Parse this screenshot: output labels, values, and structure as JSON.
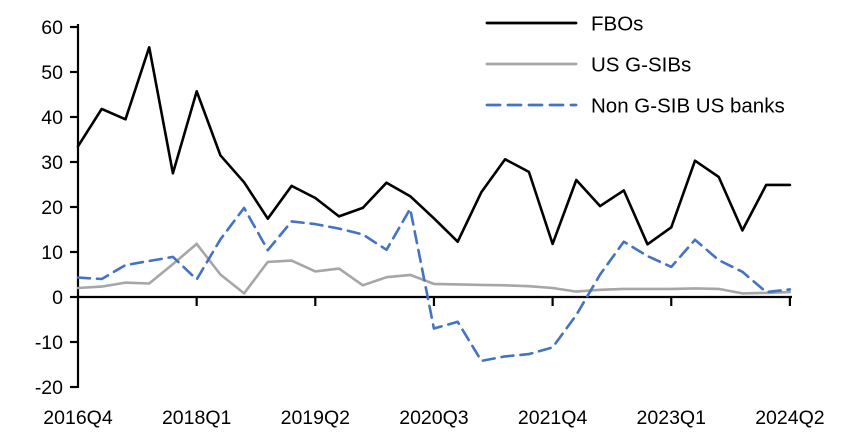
{
  "page": {
    "background_color": "#ffffff",
    "text_color": "#000000"
  },
  "chart_data": {
    "type": "line",
    "title": "",
    "xlabel": "",
    "ylabel": "",
    "grid": false,
    "legend_position": "top-right",
    "axis_color": "#000000",
    "ylim": [
      -20,
      60
    ],
    "ytick_step": 10,
    "categories": [
      "2016Q4",
      "2017Q1",
      "2017Q2",
      "2017Q3",
      "2017Q4",
      "2018Q1",
      "2018Q2",
      "2018Q3",
      "2018Q4",
      "2019Q1",
      "2019Q2",
      "2019Q3",
      "2019Q4",
      "2020Q1",
      "2020Q2",
      "2020Q3",
      "2020Q4",
      "2021Q1",
      "2021Q2",
      "2021Q3",
      "2021Q4",
      "2022Q1",
      "2022Q2",
      "2022Q3",
      "2022Q4",
      "2023Q1",
      "2023Q2",
      "2023Q3",
      "2023Q4",
      "2024Q1",
      "2024Q2"
    ],
    "x_tick_indices": [
      0,
      5,
      10,
      15,
      20,
      25,
      30
    ],
    "x_tick_labels": [
      "2016Q4",
      "2018Q1",
      "2019Q2",
      "2020Q3",
      "2021Q4",
      "2023Q1",
      "2024Q2"
    ],
    "series": [
      {
        "name": "FBOs",
        "color": "#000000",
        "dash": "solid",
        "values": [
          33.5,
          41.8,
          39.5,
          55.5,
          27.5,
          45.7,
          31.5,
          25.5,
          17.4,
          24.7,
          22.0,
          17.9,
          19.8,
          25.4,
          22.4,
          17.5,
          12.3,
          23.3,
          30.6,
          27.8,
          11.8,
          26.0,
          20.2,
          23.7,
          11.7,
          15.5,
          30.3,
          26.7,
          14.8,
          24.9,
          24.9
        ]
      },
      {
        "name": "US G-SIBs",
        "color": "#a6a6a6",
        "dash": "solid",
        "values": [
          2.0,
          2.3,
          3.2,
          3.0,
          7.3,
          11.8,
          5.0,
          0.8,
          7.8,
          8.1,
          5.7,
          6.3,
          2.6,
          4.4,
          4.9,
          2.9,
          2.8,
          2.7,
          2.6,
          2.4,
          2.0,
          1.2,
          1.6,
          1.8,
          1.8,
          1.8,
          1.9,
          1.8,
          0.8,
          0.9,
          1.1
        ]
      },
      {
        "name": "Non G-SIB US banks",
        "color": "#4472c4",
        "dash": "dashed",
        "values": [
          4.3,
          4.0,
          7.1,
          8.0,
          8.9,
          3.9,
          12.8,
          19.8,
          10.4,
          16.8,
          16.2,
          15.2,
          13.9,
          10.5,
          19.6,
          -7.0,
          -5.5,
          -14.2,
          -13.2,
          -12.7,
          -11.2,
          -4.0,
          5.0,
          12.3,
          9.1,
          6.7,
          12.7,
          8.2,
          5.6,
          1.1,
          1.7
        ]
      }
    ]
  }
}
